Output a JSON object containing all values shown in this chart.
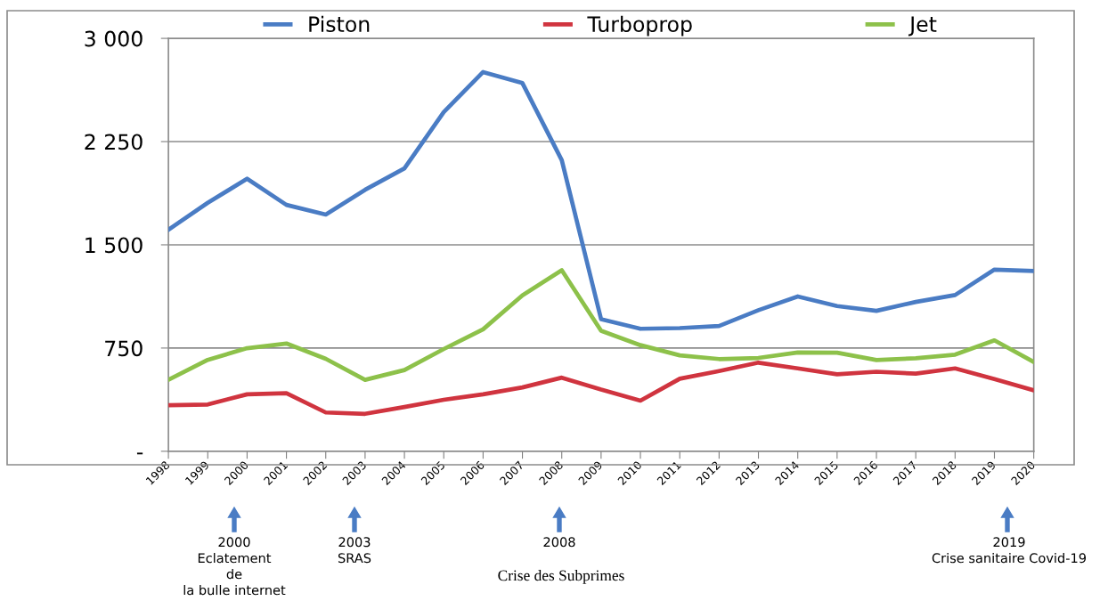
{
  "chart_data": {
    "type": "line",
    "categories": [
      "1998",
      "1999",
      "2000",
      "2001",
      "2002",
      "2003",
      "2004",
      "2005",
      "2006",
      "2007",
      "2008",
      "2009",
      "2010",
      "2011",
      "2012",
      "2013",
      "2014",
      "2015",
      "2016",
      "2017",
      "2018",
      "2019",
      "2020"
    ],
    "series": [
      {
        "name": "Piston",
        "color": "#4a7cc4",
        "values": [
          1610,
          1805,
          1980,
          1790,
          1720,
          1900,
          2055,
          2465,
          2755,
          2675,
          2115,
          960,
          890,
          895,
          910,
          1025,
          1125,
          1055,
          1020,
          1085,
          1135,
          1320,
          1310
        ]
      },
      {
        "name": "Turboprop",
        "color": "#d0343f",
        "values": [
          335,
          340,
          414,
          422,
          282,
          272,
          322,
          374,
          414,
          464,
          535,
          448,
          368,
          527,
          583,
          644,
          602,
          559,
          578,
          564,
          602,
          525,
          443
        ]
      },
      {
        "name": "Jet",
        "color": "#8dc14a",
        "values": [
          519,
          664,
          749,
          783,
          672,
          519,
          590,
          743,
          886,
          1133,
          1315,
          875,
          771,
          697,
          670,
          678,
          718,
          716,
          663,
          676,
          702,
          806,
          649
        ]
      }
    ],
    "ylim": [
      0,
      3000
    ],
    "yticks": [
      {
        "value": 0,
        "label": "-"
      },
      750,
      {
        "value": 1500,
        "label": "1 500"
      },
      {
        "value": 2250,
        "label": "2 250"
      },
      {
        "value": 3000,
        "label": "3 000"
      }
    ],
    "grid": "y",
    "legend": "top",
    "line_style": "solid",
    "annotations": [
      "2000\nEclatement\nde\nla bulle internet",
      "2003\nSRAS",
      "2008",
      "Crise des Subprimes",
      "2019\nCrise sanitaire Covid-19"
    ]
  }
}
